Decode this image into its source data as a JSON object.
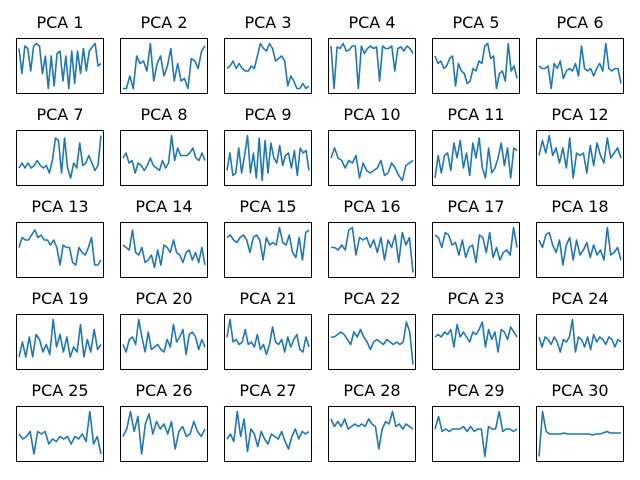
{
  "colors": {
    "line": "#1f77b4",
    "frame": "#000000",
    "background": "#ffffff"
  },
  "chart_data": [
    {
      "type": "line",
      "title": "PCA 1",
      "values": [
        0.85,
        0.35,
        0.9,
        0.85,
        0.4,
        0.9,
        0.95,
        0.9,
        0.35,
        0.7,
        0.05,
        0.7,
        0.1,
        0.75,
        0.8,
        0.2,
        0.7,
        0.05,
        0.8,
        0.15,
        0.8,
        0.35,
        0.85,
        0.4,
        0.8,
        0.88,
        0.95,
        0.5,
        0.55
      ]
    },
    {
      "type": "line",
      "title": "PCA 2",
      "values": [
        0.05,
        0.05,
        0.3,
        0.05,
        0.7,
        0.55,
        0.6,
        0.4,
        0.95,
        0.2,
        0.55,
        0.7,
        0.3,
        0.5,
        0.85,
        0.2,
        0.55,
        0.2,
        0.25,
        0.05,
        0.65,
        0.6,
        0.45,
        0.8,
        0.9
      ]
    },
    {
      "type": "line",
      "title": "PCA 3",
      "values": [
        0.45,
        0.5,
        0.6,
        0.45,
        0.55,
        0.45,
        0.4,
        0.4,
        0.5,
        0.45,
        0.7,
        0.95,
        0.85,
        0.8,
        0.95,
        0.85,
        0.6,
        0.65,
        0.7,
        0.6,
        0.1,
        0.3,
        0.2,
        0.05,
        0.05,
        0.15,
        0.05,
        0.1
      ]
    },
    {
      "type": "line",
      "title": "PCA 4",
      "values": [
        0.9,
        0.05,
        0.88,
        0.85,
        0.95,
        0.8,
        0.82,
        0.9,
        0.9,
        0.05,
        0.9,
        0.75,
        0.85,
        0.9,
        0.85,
        0.88,
        0.2,
        0.9,
        0.85,
        0.85,
        0.9,
        0.4,
        0.85,
        0.88,
        0.8,
        0.9,
        0.85,
        0.75
      ]
    },
    {
      "type": "line",
      "title": "PCA 5",
      "values": [
        0.7,
        0.55,
        0.6,
        0.45,
        0.5,
        0.65,
        0.7,
        0.1,
        0.55,
        0.4,
        0.35,
        0.15,
        0.2,
        0.45,
        0.4,
        0.6,
        0.55,
        0.9,
        0.95,
        0.65,
        0.7,
        0.05,
        0.35,
        0.4,
        0.2,
        0.95,
        0.4,
        0.5,
        0.25
      ]
    },
    {
      "type": "line",
      "title": "PCA 6",
      "values": [
        0.5,
        0.45,
        0.45,
        0.5,
        0.05,
        0.55,
        0.45,
        0.6,
        0.25,
        0.4,
        0.45,
        0.4,
        0.55,
        0.3,
        0.9,
        0.45,
        0.4,
        0.45,
        0.3,
        0.45,
        0.55,
        0.4,
        0.95,
        0.45,
        0.4,
        0.45,
        0.45,
        0.15
      ]
    },
    {
      "type": "line",
      "title": "PCA 7",
      "values": [
        0.3,
        0.4,
        0.3,
        0.4,
        0.3,
        0.35,
        0.45,
        0.35,
        0.3,
        0.35,
        0.2,
        0.45,
        0.9,
        0.85,
        0.2,
        0.9,
        0.3,
        0.1,
        0.4,
        0.3,
        0.8,
        0.35,
        0.4,
        0.55,
        0.4,
        0.25,
        0.35,
        0.95
      ]
    },
    {
      "type": "line",
      "title": "PCA 8",
      "values": [
        0.5,
        0.6,
        0.4,
        0.45,
        0.2,
        0.4,
        0.35,
        0.25,
        0.35,
        0.5,
        0.35,
        0.3,
        0.25,
        0.45,
        0.3,
        0.4,
        0.95,
        0.45,
        0.7,
        0.55,
        0.55,
        0.55,
        0.6,
        0.7,
        0.5,
        0.45,
        0.6,
        0.45
      ]
    },
    {
      "type": "line",
      "title": "PCA 9",
      "values": [
        0.25,
        0.6,
        0.15,
        0.2,
        0.7,
        0.2,
        0.55,
        0.95,
        0.2,
        0.6,
        0.1,
        0.9,
        0.05,
        0.85,
        0.2,
        0.8,
        0.5,
        0.4,
        0.75,
        0.35,
        0.55,
        0.6,
        0.3,
        0.65,
        0.15,
        0.7,
        0.6,
        0.65,
        0.25
      ]
    },
    {
      "type": "line",
      "title": "PCA 10",
      "values": [
        0.5,
        0.7,
        0.5,
        0.45,
        0.3,
        0.45,
        0.4,
        0.55,
        0.1,
        0.4,
        0.25,
        0.2,
        0.25,
        0.3,
        0.45,
        0.15,
        0.2,
        0.4,
        0.3,
        0.15,
        0.05,
        0.35,
        0.4,
        0.45
      ]
    },
    {
      "type": "line",
      "title": "PCA 11",
      "values": [
        0.1,
        0.55,
        0.2,
        0.55,
        0.6,
        0.25,
        0.8,
        0.5,
        0.85,
        0.3,
        0.6,
        0.15,
        0.8,
        0.5,
        0.9,
        0.3,
        0.1,
        0.7,
        0.2,
        0.3,
        0.5,
        0.8,
        0.35,
        0.7,
        0.1,
        0.7,
        0.65
      ]
    },
    {
      "type": "line",
      "title": "PCA 12",
      "values": [
        0.55,
        0.85,
        0.6,
        0.95,
        0.55,
        0.7,
        0.4,
        0.7,
        0.3,
        0.9,
        0.1,
        0.6,
        0.55,
        0.6,
        0.2,
        0.75,
        0.35,
        0.8,
        0.55,
        0.4,
        0.9,
        0.5,
        0.6,
        0.7,
        0.5
      ]
    },
    {
      "type": "line",
      "title": "PCA 13",
      "values": [
        0.55,
        0.75,
        0.7,
        0.7,
        0.8,
        0.9,
        0.75,
        0.8,
        0.7,
        0.7,
        0.6,
        0.7,
        0.55,
        0.2,
        0.6,
        0.55,
        0.55,
        0.25,
        0.2,
        0.55,
        0.45,
        0.4,
        0.55,
        0.75,
        0.2,
        0.2,
        0.3
      ]
    },
    {
      "type": "line",
      "title": "PCA 14",
      "values": [
        0.6,
        0.55,
        0.5,
        0.9,
        0.45,
        0.4,
        0.55,
        0.25,
        0.3,
        0.4,
        0.15,
        0.5,
        0.2,
        0.6,
        0.55,
        0.45,
        0.7,
        0.45,
        0.4,
        0.25,
        0.45,
        0.5,
        0.3,
        0.45,
        0.25,
        0.55,
        0.2
      ]
    },
    {
      "type": "line",
      "title": "PCA 15",
      "values": [
        0.75,
        0.8,
        0.7,
        0.65,
        0.75,
        0.8,
        0.7,
        0.45,
        0.75,
        0.8,
        0.7,
        0.3,
        0.75,
        0.6,
        0.65,
        0.6,
        0.95,
        0.65,
        0.6,
        0.8,
        0.45,
        0.35,
        0.75,
        0.3,
        0.85,
        0.9
      ]
    },
    {
      "type": "line",
      "title": "PCA 16",
      "values": [
        0.55,
        0.55,
        0.5,
        0.6,
        0.5,
        0.9,
        0.95,
        0.4,
        0.75,
        0.7,
        0.75,
        0.55,
        0.7,
        0.45,
        0.75,
        0.3,
        0.7,
        0.55,
        0.8,
        0.25,
        0.85,
        0.6,
        0.75,
        0.05
      ]
    },
    {
      "type": "line",
      "title": "PCA 17",
      "values": [
        0.8,
        0.75,
        0.55,
        0.85,
        0.8,
        0.6,
        0.65,
        0.4,
        0.7,
        0.35,
        0.55,
        0.6,
        0.25,
        0.8,
        0.75,
        0.45,
        0.85,
        0.35,
        0.55,
        0.3,
        0.45,
        0.5,
        0.4,
        0.95,
        0.55
      ]
    },
    {
      "type": "line",
      "title": "PCA 18",
      "values": [
        0.7,
        0.55,
        0.8,
        0.85,
        0.6,
        0.45,
        0.7,
        0.2,
        0.6,
        0.75,
        0.3,
        0.7,
        0.4,
        0.5,
        0.65,
        0.35,
        0.6,
        0.4,
        0.5,
        0.3,
        0.95,
        0.4,
        0.45,
        0.55,
        0.3
      ]
    },
    {
      "type": "line",
      "title": "PCA 19",
      "values": [
        0.2,
        0.5,
        0.2,
        0.6,
        0.2,
        0.65,
        0.55,
        0.3,
        0.45,
        0.25,
        0.95,
        0.4,
        0.65,
        0.3,
        0.6,
        0.2,
        0.4,
        0.3,
        0.85,
        0.2,
        0.55,
        0.3,
        0.75,
        0.35,
        0.45
      ]
    },
    {
      "type": "line",
      "title": "PCA 20",
      "values": [
        0.45,
        0.3,
        0.55,
        0.6,
        0.45,
        0.95,
        0.6,
        0.3,
        0.7,
        0.35,
        0.4,
        0.45,
        0.35,
        0.3,
        0.55,
        0.4,
        0.85,
        0.5,
        0.6,
        0.75,
        0.25,
        0.65,
        0.7,
        0.6,
        0.35,
        0.55,
        0.4
      ]
    },
    {
      "type": "line",
      "title": "PCA 21",
      "values": [
        0.6,
        0.95,
        0.5,
        0.55,
        0.45,
        0.5,
        0.75,
        0.45,
        0.5,
        0.4,
        0.65,
        0.35,
        0.45,
        0.25,
        0.45,
        0.8,
        0.5,
        0.45,
        0.55,
        0.3,
        0.6,
        0.4,
        0.55,
        0.65,
        0.35,
        0.3,
        0.6,
        0.4
      ]
    },
    {
      "type": "line",
      "title": "PCA 22",
      "values": [
        0.6,
        0.6,
        0.65,
        0.7,
        0.65,
        0.55,
        0.45,
        0.7,
        0.6,
        0.75,
        0.6,
        0.5,
        0.35,
        0.5,
        0.55,
        0.5,
        0.45,
        0.55,
        0.5,
        0.45,
        0.5,
        0.45,
        0.5,
        0.9,
        0.7,
        0.05
      ]
    },
    {
      "type": "line",
      "title": "PCA 23",
      "values": [
        0.6,
        0.65,
        0.6,
        0.7,
        0.65,
        0.75,
        0.4,
        0.85,
        0.6,
        0.7,
        0.6,
        0.5,
        0.7,
        0.65,
        0.75,
        0.9,
        0.4,
        0.75,
        0.55,
        0.7,
        0.3,
        0.75,
        0.7,
        0.55,
        0.8,
        0.7,
        0.6
      ]
    },
    {
      "type": "line",
      "title": "PCA 24",
      "values": [
        0.6,
        0.4,
        0.6,
        0.55,
        0.45,
        0.6,
        0.5,
        0.3,
        0.55,
        0.5,
        0.6,
        0.95,
        0.3,
        0.6,
        0.55,
        0.4,
        0.6,
        0.35,
        0.65,
        0.5,
        0.6,
        0.55,
        0.45,
        0.6,
        0.55,
        0.4,
        0.55,
        0.5
      ]
    },
    {
      "type": "line",
      "title": "PCA 25",
      "values": [
        0.5,
        0.4,
        0.45,
        0.55,
        0.1,
        0.55,
        0.5,
        0.55,
        0.3,
        0.4,
        0.35,
        0.45,
        0.4,
        0.45,
        0.3,
        0.45,
        0.4,
        0.5,
        0.35,
        0.95,
        0.3,
        0.45,
        0.1
      ]
    },
    {
      "type": "line",
      "title": "PCA 26",
      "values": [
        0.45,
        0.6,
        0.95,
        0.55,
        0.85,
        0.1,
        0.7,
        0.9,
        0.5,
        0.75,
        0.6,
        0.7,
        0.5,
        0.75,
        0.2,
        0.55,
        0.65,
        0.45,
        0.5,
        0.75,
        0.55,
        0.45,
        0.6
      ]
    },
    {
      "type": "line",
      "title": "PCA 27",
      "values": [
        0.4,
        0.5,
        0.35,
        0.95,
        0.45,
        0.8,
        0.15,
        0.6,
        0.5,
        0.25,
        0.55,
        0.4,
        0.3,
        0.5,
        0.45,
        0.4,
        0.55,
        0.35,
        0.2,
        0.45,
        0.6,
        0.4,
        0.55,
        0.5,
        0.55
      ]
    },
    {
      "type": "line",
      "title": "PCA 28",
      "values": [
        0.8,
        0.65,
        0.75,
        0.65,
        0.8,
        0.6,
        0.65,
        0.7,
        0.65,
        0.7,
        0.65,
        0.8,
        0.7,
        0.65,
        0.2,
        0.6,
        0.75,
        0.7,
        0.95,
        0.65,
        0.7,
        0.6,
        0.7,
        0.65,
        0.6
      ]
    },
    {
      "type": "line",
      "title": "PCA 29",
      "values": [
        0.6,
        0.85,
        0.55,
        0.6,
        0.55,
        0.6,
        0.6,
        0.6,
        0.65,
        0.55,
        0.65,
        0.55,
        0.6,
        0.6,
        0.05,
        0.65,
        0.6,
        0.6,
        0.95,
        0.55,
        0.6,
        0.6,
        0.55,
        0.6
      ]
    },
    {
      "type": "line",
      "title": "PCA 30",
      "values": [
        0.05,
        0.95,
        0.55,
        0.5,
        0.5,
        0.5,
        0.5,
        0.52,
        0.5,
        0.5,
        0.5,
        0.5,
        0.5,
        0.5,
        0.5,
        0.48,
        0.5,
        0.5,
        0.52,
        0.55,
        0.52,
        0.52,
        0.52,
        0.52
      ]
    }
  ]
}
